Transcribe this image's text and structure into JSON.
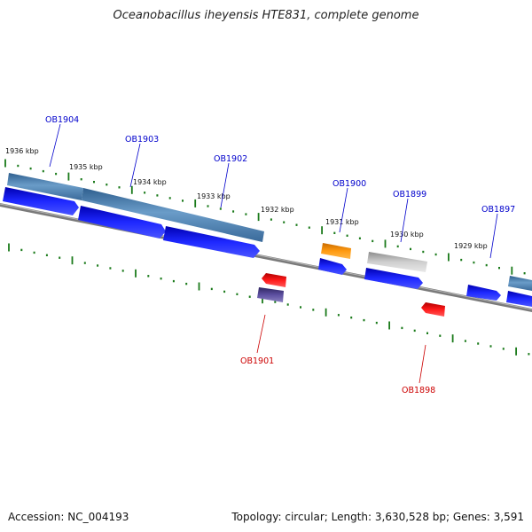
{
  "title": "Oceanobacillus iheyensis HTE831, complete genome",
  "footer": {
    "accession": "Accession: NC_004193",
    "summary": "Topology: circular; Length: 3,630,528 bp; Genes: 3,591"
  },
  "colors": {
    "forward_label": "#0000cc",
    "reverse_label": "#cc0000",
    "backbone": "#7a7a7a",
    "ticks": "#1a7a1a",
    "cds_blue": "#0a14e6",
    "gene_steel": "#4a7eb0",
    "gene_orange": "#f08a00",
    "gene_grey": "#b8b8b8",
    "gene_red": "#ee0000",
    "gene_purple": "#4c3f86"
  },
  "kbp_labels": [
    "1936 kbp",
    "1935 kbp",
    "1934 kbp",
    "1933 kbp",
    "1932 kbp",
    "1931 kbp",
    "1930 kbp",
    "1929 kbp"
  ],
  "genes_forward": [
    {
      "name": "OB1904"
    },
    {
      "name": "OB1903"
    },
    {
      "name": "OB1902"
    },
    {
      "name": "OB1900"
    },
    {
      "name": "OB1899"
    },
    {
      "name": "OB1897"
    }
  ],
  "genes_reverse": [
    {
      "name": "OB1901"
    },
    {
      "name": "OB1898"
    }
  ]
}
